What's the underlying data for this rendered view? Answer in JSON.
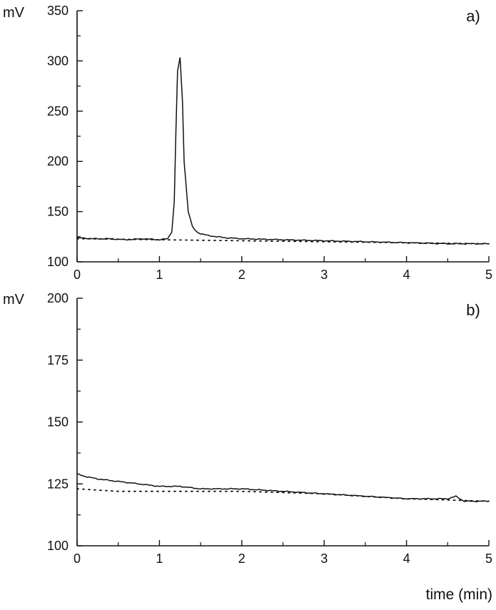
{
  "chart_data": [
    {
      "type": "line",
      "panel_label": "a)",
      "ylabel": "mV",
      "xlabel": "",
      "xlim": [
        0,
        5
      ],
      "ylim": [
        100,
        350
      ],
      "x_ticks": [
        "0",
        "1",
        "2",
        "3",
        "4",
        "5"
      ],
      "y_ticks": [
        "100",
        "150",
        "200",
        "250",
        "300",
        "350"
      ],
      "grid": false,
      "legend": "none",
      "series": [
        {
          "style": "solid",
          "x": [
            0,
            0.2,
            0.4,
            0.6,
            0.8,
            1.0,
            1.1,
            1.15,
            1.18,
            1.2,
            1.22,
            1.25,
            1.28,
            1.3,
            1.35,
            1.4,
            1.45,
            1.5,
            1.6,
            1.8,
            2.0,
            2.5,
            3.0,
            3.5,
            4.0,
            4.5,
            5.0
          ],
          "y": [
            124,
            123,
            123,
            122,
            123,
            122,
            123,
            130,
            160,
            230,
            290,
            303,
            260,
            200,
            150,
            135,
            130,
            128,
            126,
            124,
            123,
            122,
            121,
            120,
            119,
            118,
            118
          ]
        },
        {
          "style": "dotted",
          "x": [
            0,
            1.0,
            2.0,
            3.0,
            4.0,
            5.0
          ],
          "y": [
            123,
            122,
            121,
            120,
            119,
            118
          ]
        }
      ]
    },
    {
      "type": "line",
      "panel_label": "b)",
      "ylabel": "mV",
      "xlabel": "time (min)",
      "xlim": [
        0,
        5
      ],
      "ylim": [
        100,
        200
      ],
      "x_ticks": [
        "0",
        "1",
        "2",
        "3",
        "4",
        "5"
      ],
      "y_ticks": [
        "100",
        "125",
        "150",
        "175",
        "200"
      ],
      "grid": false,
      "legend": "none",
      "series": [
        {
          "style": "solid",
          "x": [
            0,
            0.1,
            0.25,
            0.5,
            0.75,
            1.0,
            1.25,
            1.5,
            2.0,
            2.5,
            3.0,
            3.5,
            4.0,
            4.5,
            4.6,
            4.7,
            5.0
          ],
          "y": [
            129,
            128,
            127,
            126,
            125,
            124,
            124,
            123,
            123,
            122,
            121,
            120,
            119,
            119,
            120,
            118,
            118
          ]
        },
        {
          "style": "dotted",
          "x": [
            0,
            0.5,
            1.0,
            2.0,
            3.0,
            4.0,
            5.0
          ],
          "y": [
            123,
            122,
            122,
            122,
            121,
            119,
            118
          ]
        }
      ]
    }
  ]
}
